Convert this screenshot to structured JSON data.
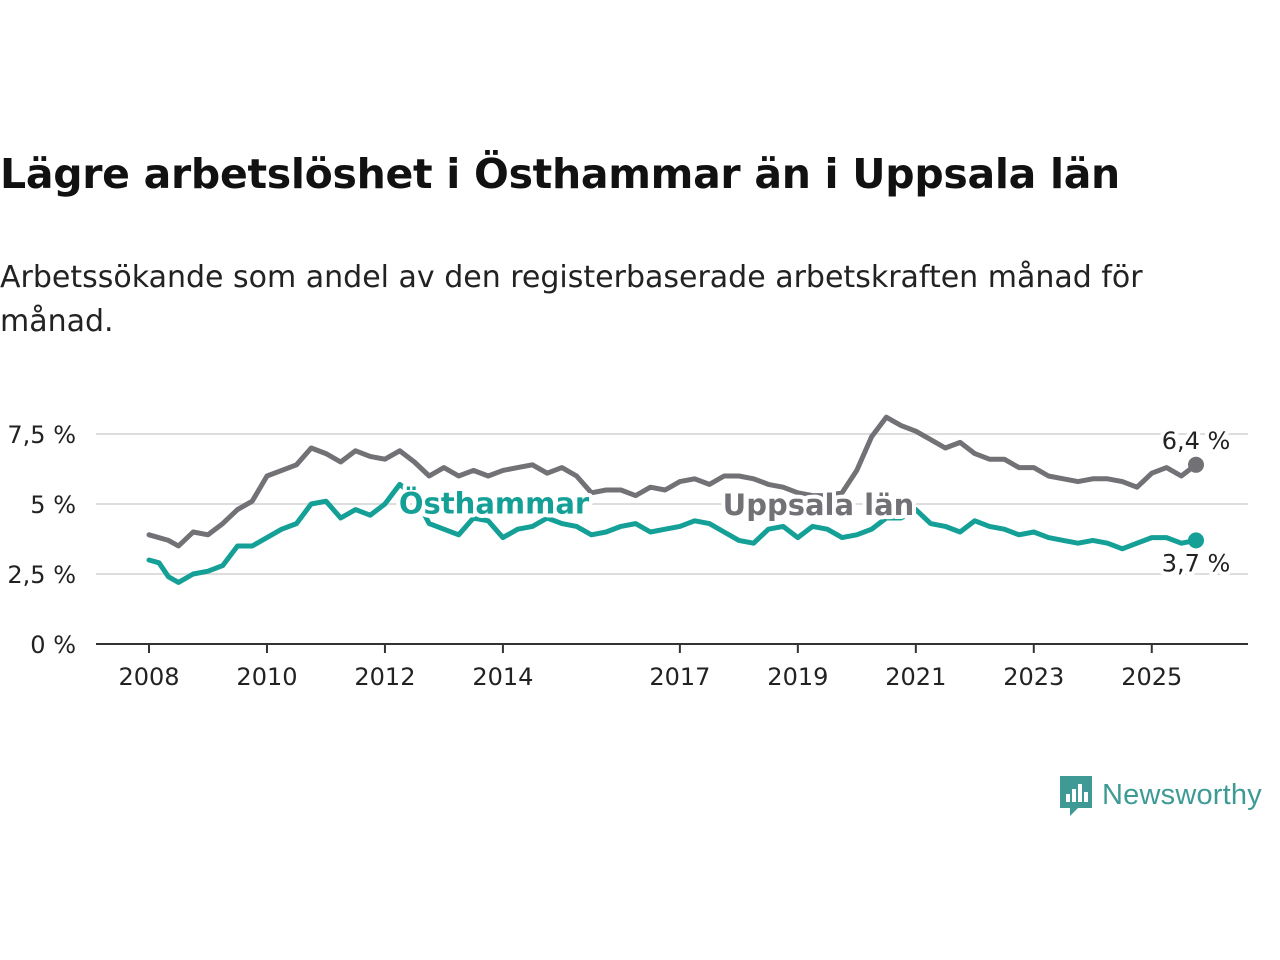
{
  "title": "Lägre arbetslöshet i Östhammar än i Uppsala län",
  "subtitle": "Arbetssökande som andel av den registerbaserade arbetskraften månad för månad.",
  "brand": {
    "name": "Newsworthy",
    "icon": "newsworthy-logo-icon"
  },
  "colors": {
    "uppsala": "#727175",
    "osthammar": "#14a096",
    "grid": "#dddddd",
    "axis": "#333333"
  },
  "chart_data": {
    "type": "line",
    "title": "Lägre arbetslöshet i Östhammar än i Uppsala län",
    "subtitle": "Arbetssökande som andel av den registerbaserade arbetskraften månad för månad.",
    "xlabel": "",
    "ylabel": "",
    "xlim": [
      2008.0,
      2025.75
    ],
    "ylim": [
      0,
      8
    ],
    "y_ticks": [
      0,
      2.5,
      5,
      7.5
    ],
    "y_tick_labels": [
      "0 %",
      "2,5 %",
      "5 %",
      "7,5 %"
    ],
    "x_ticks": [
      2008,
      2010,
      2012,
      2014,
      2017,
      2019,
      2021,
      2023,
      2025
    ],
    "x_tick_labels": [
      "2008",
      "2010",
      "2012",
      "2014",
      "2017",
      "2019",
      "2021",
      "2023",
      "2025"
    ],
    "grid": true,
    "legend": "inline labels",
    "series": [
      {
        "name": "Uppsala län",
        "color": "#727175",
        "end_label": "6,4 %",
        "points": [
          [
            2008.0,
            3.9
          ],
          [
            2008.33,
            3.7
          ],
          [
            2008.5,
            3.5
          ],
          [
            2008.75,
            4.0
          ],
          [
            2009.0,
            3.9
          ],
          [
            2009.25,
            4.3
          ],
          [
            2009.5,
            4.8
          ],
          [
            2009.75,
            5.1
          ],
          [
            2010.0,
            6.0
          ],
          [
            2010.25,
            6.2
          ],
          [
            2010.5,
            6.4
          ],
          [
            2010.75,
            7.0
          ],
          [
            2011.0,
            6.8
          ],
          [
            2011.25,
            6.5
          ],
          [
            2011.5,
            6.9
          ],
          [
            2011.75,
            6.7
          ],
          [
            2012.0,
            6.6
          ],
          [
            2012.25,
            6.9
          ],
          [
            2012.5,
            6.5
          ],
          [
            2012.75,
            6.0
          ],
          [
            2013.0,
            6.3
          ],
          [
            2013.25,
            6.0
          ],
          [
            2013.5,
            6.2
          ],
          [
            2013.75,
            6.0
          ],
          [
            2014.0,
            6.2
          ],
          [
            2014.25,
            6.3
          ],
          [
            2014.5,
            6.4
          ],
          [
            2014.75,
            6.1
          ],
          [
            2015.0,
            6.3
          ],
          [
            2015.25,
            6.0
          ],
          [
            2015.5,
            5.4
          ],
          [
            2015.75,
            5.5
          ],
          [
            2016.0,
            5.5
          ],
          [
            2016.25,
            5.3
          ],
          [
            2016.5,
            5.6
          ],
          [
            2016.75,
            5.5
          ],
          [
            2017.0,
            5.8
          ],
          [
            2017.25,
            5.9
          ],
          [
            2017.5,
            5.7
          ],
          [
            2017.75,
            6.0
          ],
          [
            2018.0,
            6.0
          ],
          [
            2018.25,
            5.9
          ],
          [
            2018.5,
            5.7
          ],
          [
            2018.75,
            5.6
          ],
          [
            2019.0,
            5.4
          ],
          [
            2019.25,
            5.3
          ],
          [
            2019.5,
            5.3
          ],
          [
            2019.75,
            5.4
          ],
          [
            2020.0,
            6.2
          ],
          [
            2020.25,
            7.4
          ],
          [
            2020.5,
            8.1
          ],
          [
            2020.75,
            7.8
          ],
          [
            2021.0,
            7.6
          ],
          [
            2021.25,
            7.3
          ],
          [
            2021.5,
            7.0
          ],
          [
            2021.75,
            7.2
          ],
          [
            2022.0,
            6.8
          ],
          [
            2022.25,
            6.6
          ],
          [
            2022.5,
            6.6
          ],
          [
            2022.75,
            6.3
          ],
          [
            2023.0,
            6.3
          ],
          [
            2023.25,
            6.0
          ],
          [
            2023.5,
            5.9
          ],
          [
            2023.75,
            5.8
          ],
          [
            2024.0,
            5.9
          ],
          [
            2024.25,
            5.9
          ],
          [
            2024.5,
            5.8
          ],
          [
            2024.75,
            5.6
          ],
          [
            2025.0,
            6.1
          ],
          [
            2025.25,
            6.3
          ],
          [
            2025.5,
            6.0
          ],
          [
            2025.75,
            6.4
          ]
        ]
      },
      {
        "name": "Östhammar",
        "color": "#14a096",
        "end_label": "3,7 %",
        "points": [
          [
            2008.0,
            3.0
          ],
          [
            2008.17,
            2.9
          ],
          [
            2008.33,
            2.4
          ],
          [
            2008.5,
            2.2
          ],
          [
            2008.75,
            2.5
          ],
          [
            2009.0,
            2.6
          ],
          [
            2009.25,
            2.8
          ],
          [
            2009.5,
            3.5
          ],
          [
            2009.75,
            3.5
          ],
          [
            2010.0,
            3.8
          ],
          [
            2010.25,
            4.1
          ],
          [
            2010.5,
            4.3
          ],
          [
            2010.75,
            5.0
          ],
          [
            2011.0,
            5.1
          ],
          [
            2011.25,
            4.5
          ],
          [
            2011.5,
            4.8
          ],
          [
            2011.75,
            4.6
          ],
          [
            2012.0,
            5.0
          ],
          [
            2012.25,
            5.7
          ],
          [
            2012.5,
            5.3
          ],
          [
            2012.75,
            4.3
          ],
          [
            2013.0,
            4.1
          ],
          [
            2013.25,
            3.9
          ],
          [
            2013.5,
            4.5
          ],
          [
            2013.75,
            4.4
          ],
          [
            2014.0,
            3.8
          ],
          [
            2014.25,
            4.1
          ],
          [
            2014.5,
            4.2
          ],
          [
            2014.75,
            4.5
          ],
          [
            2015.0,
            4.3
          ],
          [
            2015.25,
            4.2
          ],
          [
            2015.5,
            3.9
          ],
          [
            2015.75,
            4.0
          ],
          [
            2016.0,
            4.2
          ],
          [
            2016.25,
            4.3
          ],
          [
            2016.5,
            4.0
          ],
          [
            2016.75,
            4.1
          ],
          [
            2017.0,
            4.2
          ],
          [
            2017.25,
            4.4
          ],
          [
            2017.5,
            4.3
          ],
          [
            2017.75,
            4.0
          ],
          [
            2018.0,
            3.7
          ],
          [
            2018.25,
            3.6
          ],
          [
            2018.5,
            4.1
          ],
          [
            2018.75,
            4.2
          ],
          [
            2019.0,
            3.8
          ],
          [
            2019.25,
            4.2
          ],
          [
            2019.5,
            4.1
          ],
          [
            2019.75,
            3.8
          ],
          [
            2020.0,
            3.9
          ],
          [
            2020.25,
            4.1
          ],
          [
            2020.5,
            4.5
          ],
          [
            2020.75,
            4.5
          ],
          [
            2021.0,
            4.8
          ],
          [
            2021.25,
            4.3
          ],
          [
            2021.5,
            4.2
          ],
          [
            2021.75,
            4.0
          ],
          [
            2022.0,
            4.4
          ],
          [
            2022.25,
            4.2
          ],
          [
            2022.5,
            4.1
          ],
          [
            2022.75,
            3.9
          ],
          [
            2023.0,
            4.0
          ],
          [
            2023.25,
            3.8
          ],
          [
            2023.5,
            3.7
          ],
          [
            2023.75,
            3.6
          ],
          [
            2024.0,
            3.7
          ],
          [
            2024.25,
            3.6
          ],
          [
            2024.5,
            3.4
          ],
          [
            2024.75,
            3.6
          ],
          [
            2025.0,
            3.8
          ],
          [
            2025.25,
            3.8
          ],
          [
            2025.5,
            3.6
          ],
          [
            2025.75,
            3.7
          ]
        ]
      }
    ]
  }
}
